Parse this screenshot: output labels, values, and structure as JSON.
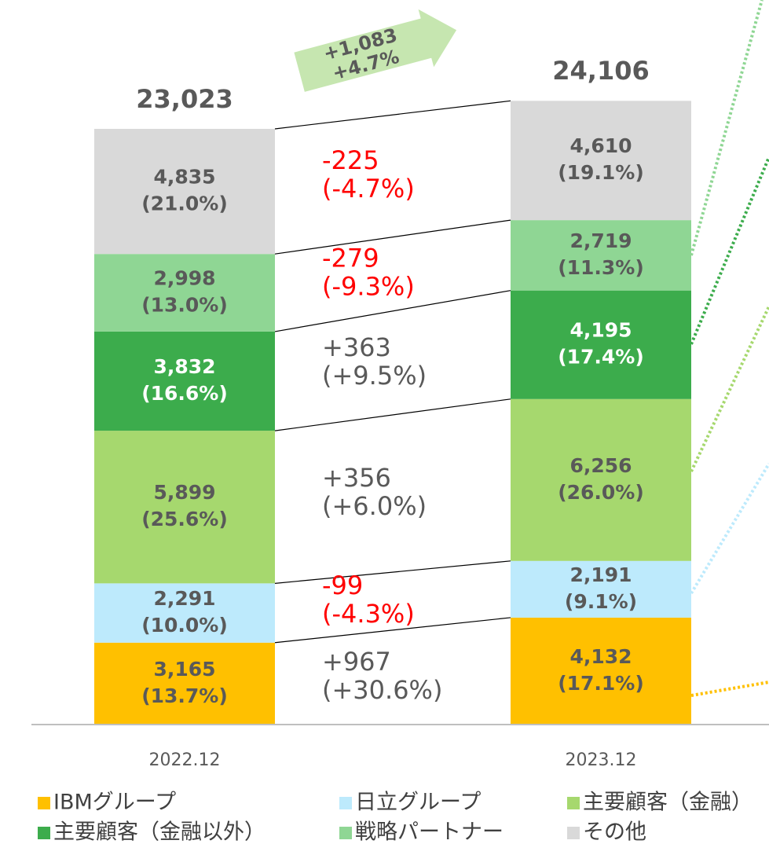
{
  "chart_data": {
    "type": "stacked_bar",
    "categories": [
      "2022.12",
      "2023.12"
    ],
    "ylim": [
      0,
      28000
    ],
    "totals": [
      23023,
      24106
    ],
    "total_labels": [
      "23,023",
      "24,106"
    ],
    "total_change": "+1,083",
    "total_change_pct": "+4.7%",
    "series": [
      {
        "name": "IBMグループ",
        "color": "#ffc000",
        "values": [
          3165,
          4132
        ],
        "value_labels": [
          "3,165",
          "4,132"
        ],
        "share_labels": [
          "(13.7%)",
          "(17.1%)"
        ],
        "change": "+967",
        "change_pct": "(+30.6%)"
      },
      {
        "name": "日立グループ",
        "color": "#bdeafc",
        "values": [
          2291,
          2191
        ],
        "value_labels": [
          "2,291",
          "2,191"
        ],
        "share_labels": [
          "(10.0%)",
          "(9.1%)"
        ],
        "change": "-99",
        "change_pct": "(-4.3%)"
      },
      {
        "name": "主要顧客（金融）",
        "color": "#a6d86e",
        "values": [
          5899,
          6256
        ],
        "value_labels": [
          "5,899",
          "6,256"
        ],
        "share_labels": [
          "(25.6%)",
          "(26.0%)"
        ],
        "change": "+356",
        "change_pct": "(+6.0%)"
      },
      {
        "name": "主要顧客（金融以外）",
        "color": "#3cac4c",
        "values": [
          3832,
          4195
        ],
        "value_labels": [
          "3,832",
          "4,195"
        ],
        "share_labels": [
          "(16.6%)",
          "(17.4%)"
        ],
        "change": "+363",
        "change_pct": "(+9.5%)"
      },
      {
        "name": "戦略パートナー",
        "color": "#8fd694",
        "values": [
          2998,
          2719
        ],
        "value_labels": [
          "2,998",
          "2,719"
        ],
        "share_labels": [
          "(13.0%)",
          "(11.3%)"
        ],
        "change": "-279",
        "change_pct": "(-9.3%)"
      },
      {
        "name": "その他",
        "color": "#d9d9d9",
        "values": [
          4835,
          4610
        ],
        "value_labels": [
          "4,835",
          "4,610"
        ],
        "share_labels": [
          "(21.0%)",
          "(19.1%)"
        ],
        "change": "-225",
        "change_pct": "(-4.7%)"
      }
    ]
  }
}
